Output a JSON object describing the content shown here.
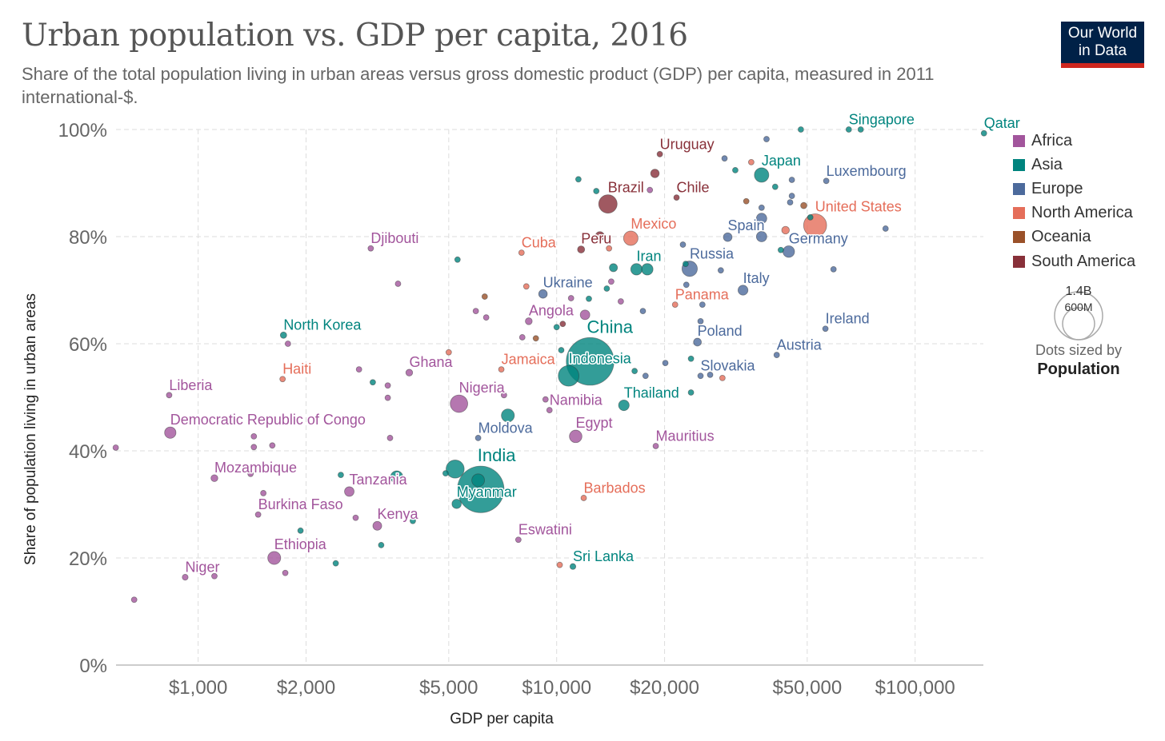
{
  "header": {
    "title": "Urban population vs. GDP per capita, 2016",
    "subtitle": "Share of the total population living in urban areas versus gross domestic product (GDP) per capita, measured in 2011 international-$.",
    "logo_line1": "Our World",
    "logo_line2": "in Data"
  },
  "size_legend": {
    "big": "1.4B",
    "small": "600M",
    "note": "Dots sized by",
    "variable": "Population",
    "big_value_m": 1400,
    "small_value_m": 600
  },
  "chart_data": {
    "type": "scatter",
    "title": "Urban population vs. GDP per capita, 2016",
    "xlabel": "GDP per capita",
    "ylabel": "Share of population living in urban areas",
    "x_scale": "log",
    "xlim": [
      590,
      155000
    ],
    "ylim": [
      0,
      100
    ],
    "x_ticks": [
      {
        "v": 1000,
        "label": "$1,000"
      },
      {
        "v": 2000,
        "label": "$2,000"
      },
      {
        "v": 5000,
        "label": "$5,000"
      },
      {
        "v": 10000,
        "label": "$10,000"
      },
      {
        "v": 20000,
        "label": "$20,000"
      },
      {
        "v": 50000,
        "label": "$50,000"
      },
      {
        "v": 100000,
        "label": "$100,000"
      }
    ],
    "y_ticks": [
      {
        "v": 0,
        "label": "0%"
      },
      {
        "v": 20,
        "label": "20%"
      },
      {
        "v": 40,
        "label": "40%"
      },
      {
        "v": 60,
        "label": "60%"
      },
      {
        "v": 80,
        "label": "80%"
      },
      {
        "v": 100,
        "label": "100%"
      }
    ],
    "grid": true,
    "legend_placement": "right",
    "regions": [
      {
        "name": "Africa",
        "color": "#a2559c"
      },
      {
        "name": "Asia",
        "color": "#00847e"
      },
      {
        "name": "Europe",
        "color": "#4c6a9c"
      },
      {
        "name": "North America",
        "color": "#e56e5a"
      },
      {
        "name": "Oceania",
        "color": "#9a5129"
      },
      {
        "name": "South America",
        "color": "#883039"
      }
    ],
    "points": [
      {
        "country": "Qatar",
        "region": "Asia",
        "gdp": 155600,
        "urban": 99.3,
        "pop_m": 2.6
      },
      {
        "country": "Singapore",
        "region": "Asia",
        "gdp": 65300,
        "urban": 100,
        "pop_m": 5.6
      },
      {
        "country": "Luxembourg",
        "region": "Europe",
        "gdp": 56500,
        "urban": 90.4,
        "pop_m": 0.6
      },
      {
        "country": "United States",
        "region": "North America",
        "gdp": 52600,
        "urban": 82.1,
        "pop_m": 323
      },
      {
        "country": "Germany",
        "region": "Europe",
        "gdp": 44400,
        "urban": 77.2,
        "pop_m": 82
      },
      {
        "country": "Japan",
        "region": "Asia",
        "gdp": 37300,
        "urban": 91.5,
        "pop_m": 127
      },
      {
        "country": "Spain",
        "region": "Europe",
        "gdp": 30000,
        "urban": 79.9,
        "pop_m": 46
      },
      {
        "country": "Italy",
        "region": "Europe",
        "gdp": 33100,
        "urban": 70.0,
        "pop_m": 60
      },
      {
        "country": "Ireland",
        "region": "Europe",
        "gdp": 56200,
        "urban": 62.8,
        "pop_m": 4.7
      },
      {
        "country": "Austria",
        "region": "Europe",
        "gdp": 41100,
        "urban": 57.9,
        "pop_m": 8.7
      },
      {
        "country": "Russia",
        "region": "Europe",
        "gdp": 23500,
        "urban": 74.0,
        "pop_m": 144
      },
      {
        "country": "Poland",
        "region": "Europe",
        "gdp": 24700,
        "urban": 60.3,
        "pop_m": 38
      },
      {
        "country": "Slovakia",
        "region": "Europe",
        "gdp": 25200,
        "urban": 54.0,
        "pop_m": 5.4
      },
      {
        "country": "Chile",
        "region": "South America",
        "gdp": 21600,
        "urban": 87.3,
        "pop_m": 18
      },
      {
        "country": "Uruguay",
        "region": "South America",
        "gdp": 19400,
        "urban": 95.4,
        "pop_m": 3.4
      },
      {
        "country": "Brazil",
        "region": "South America",
        "gdp": 13900,
        "urban": 86.1,
        "pop_m": 207
      },
      {
        "country": "Mexico",
        "region": "North America",
        "gdp": 16100,
        "urban": 79.7,
        "pop_m": 127
      },
      {
        "country": "Peru",
        "region": "South America",
        "gdp": 11700,
        "urban": 77.6,
        "pop_m": 31
      },
      {
        "country": "Cuba",
        "region": "North America",
        "gdp": 7980,
        "urban": 77.0,
        "pop_m": 11
      },
      {
        "country": "Iran",
        "region": "Asia",
        "gdp": 16700,
        "urban": 73.9,
        "pop_m": 80
      },
      {
        "country": "Panama",
        "region": "North America",
        "gdp": 21400,
        "urban": 67.3,
        "pop_m": 4
      },
      {
        "country": "Ukraine",
        "region": "Europe",
        "gdp": 9160,
        "urban": 69.3,
        "pop_m": 45
      },
      {
        "country": "Angola",
        "region": "Africa",
        "gdp": 8360,
        "urban": 64.2,
        "pop_m": 29
      },
      {
        "country": "China",
        "region": "Asia",
        "gdp": 12400,
        "urban": 56.7,
        "pop_m": 1380
      },
      {
        "country": "Indonesia",
        "region": "Asia",
        "gdp": 10800,
        "urban": 54.0,
        "pop_m": 260
      },
      {
        "country": "Thailand",
        "region": "Asia",
        "gdp": 15400,
        "urban": 48.5,
        "pop_m": 69
      },
      {
        "country": "Namibia",
        "region": "Africa",
        "gdp": 9550,
        "urban": 47.6,
        "pop_m": 2.5
      },
      {
        "country": "Egypt",
        "region": "Africa",
        "gdp": 11300,
        "urban": 42.7,
        "pop_m": 96
      },
      {
        "country": "Mauritius",
        "region": "Africa",
        "gdp": 18900,
        "urban": 40.9,
        "pop_m": 1.3
      },
      {
        "country": "Jamaica",
        "region": "North America",
        "gdp": 7010,
        "urban": 55.2,
        "pop_m": 2.9
      },
      {
        "country": "Nigeria",
        "region": "Africa",
        "gdp": 5340,
        "urban": 48.8,
        "pop_m": 186
      },
      {
        "country": "Moldova",
        "region": "Europe",
        "gdp": 6040,
        "urban": 42.4,
        "pop_m": 3.5
      },
      {
        "country": "India",
        "region": "Asia",
        "gdp": 6140,
        "urban": 32.8,
        "pop_m": 1320
      },
      {
        "country": "Myanmar",
        "region": "Asia",
        "gdp": 5260,
        "urban": 30.1,
        "pop_m": 53
      },
      {
        "country": "Barbados",
        "region": "North America",
        "gdp": 11900,
        "urban": 31.2,
        "pop_m": 0.3
      },
      {
        "country": "Eswatini",
        "region": "Africa",
        "gdp": 7820,
        "urban": 23.4,
        "pop_m": 1.3
      },
      {
        "country": "Sri Lanka",
        "region": "Asia",
        "gdp": 11100,
        "urban": 18.4,
        "pop_m": 21
      },
      {
        "country": "Kenya",
        "region": "Africa",
        "gdp": 3160,
        "urban": 26.0,
        "pop_m": 48
      },
      {
        "country": "Tanzania",
        "region": "Africa",
        "gdp": 2640,
        "urban": 32.4,
        "pop_m": 56
      },
      {
        "country": "Burkina Faso",
        "region": "Africa",
        "gdp": 1470,
        "urban": 28.1,
        "pop_m": 19
      },
      {
        "country": "Mozambique",
        "region": "Africa",
        "gdp": 1110,
        "urban": 34.9,
        "pop_m": 29
      },
      {
        "country": "Ethiopia",
        "region": "Africa",
        "gdp": 1630,
        "urban": 20.0,
        "pop_m": 102
      },
      {
        "country": "Niger",
        "region": "Africa",
        "gdp": 920,
        "urban": 16.4,
        "pop_m": 21
      },
      {
        "country": "Liberia",
        "region": "Africa",
        "gdp": 830,
        "urban": 50.4,
        "pop_m": 4.6
      },
      {
        "country": "Democratic Republic of Congo",
        "region": "Africa",
        "gdp": 836,
        "urban": 43.4,
        "pop_m": 79
      },
      {
        "country": "Haiti",
        "region": "North America",
        "gdp": 1720,
        "urban": 53.4,
        "pop_m": 11
      },
      {
        "country": "North Korea",
        "region": "Asia",
        "gdp": 1730,
        "urban": 61.6,
        "pop_m": 25
      },
      {
        "country": "Ghana",
        "region": "Africa",
        "gdp": 3880,
        "urban": 54.6,
        "pop_m": 28
      },
      {
        "country": "Djibouti",
        "region": "Africa",
        "gdp": 3030,
        "urban": 77.8,
        "pop_m": 0.9
      },
      {
        "region": "Africa",
        "gdp": 589,
        "urban": 40.6,
        "pop_m": 5
      },
      {
        "region": "Africa",
        "gdp": 663,
        "urban": 12.2,
        "pop_m": 5
      },
      {
        "region": "Africa",
        "gdp": 1110,
        "urban": 16.6,
        "pop_m": 5
      },
      {
        "region": "Africa",
        "gdp": 1750,
        "urban": 17.2,
        "pop_m": 5
      },
      {
        "region": "Africa",
        "gdp": 1400,
        "urban": 35.7,
        "pop_m": 5
      },
      {
        "region": "Africa",
        "gdp": 1520,
        "urban": 32.1,
        "pop_m": 5
      },
      {
        "region": "Africa",
        "gdp": 1430,
        "urban": 40.7,
        "pop_m": 5
      },
      {
        "region": "Africa",
        "gdp": 1610,
        "urban": 41.0,
        "pop_m": 5
      },
      {
        "region": "Africa",
        "gdp": 1430,
        "urban": 42.7,
        "pop_m": 5
      },
      {
        "region": "Africa",
        "gdp": 1780,
        "urban": 60.0,
        "pop_m": 5
      },
      {
        "region": "Africa",
        "gdp": 2810,
        "urban": 55.2,
        "pop_m": 12
      },
      {
        "region": "Africa",
        "gdp": 3380,
        "urban": 52.2,
        "pop_m": 5
      },
      {
        "region": "Africa",
        "gdp": 3380,
        "urban": 49.9,
        "pop_m": 10
      },
      {
        "region": "Africa",
        "gdp": 3430,
        "urban": 42.4,
        "pop_m": 5
      },
      {
        "region": "Africa",
        "gdp": 2750,
        "urban": 27.5,
        "pop_m": 5
      },
      {
        "region": "Africa",
        "gdp": 3610,
        "urban": 71.2,
        "pop_m": 5
      },
      {
        "region": "Africa",
        "gdp": 5950,
        "urban": 66.1,
        "pop_m": 5
      },
      {
        "region": "Africa",
        "gdp": 6360,
        "urban": 64.9,
        "pop_m": 5
      },
      {
        "region": "Africa",
        "gdp": 8020,
        "urban": 61.2,
        "pop_m": 12
      },
      {
        "region": "Africa",
        "gdp": 9310,
        "urban": 49.6,
        "pop_m": 5
      },
      {
        "region": "Africa",
        "gdp": 10970,
        "urban": 68.5,
        "pop_m": 5
      },
      {
        "region": "Africa",
        "gdp": 12000,
        "urban": 65.4,
        "pop_m": 56
      },
      {
        "region": "Africa",
        "gdp": 14200,
        "urban": 71.6,
        "pop_m": 12
      },
      {
        "region": "Africa",
        "gdp": 15100,
        "urban": 67.9,
        "pop_m": 5
      },
      {
        "region": "Africa",
        "gdp": 18200,
        "urban": 88.7,
        "pop_m": 5
      },
      {
        "region": "Africa",
        "gdp": 7130,
        "urban": 50.4,
        "pop_m": 5
      },
      {
        "region": "Asia",
        "gdp": 1930,
        "urban": 25.1,
        "pop_m": 15
      },
      {
        "region": "Asia",
        "gdp": 2420,
        "urban": 19.0,
        "pop_m": 15
      },
      {
        "region": "Asia",
        "gdp": 2500,
        "urban": 35.5,
        "pop_m": 12
      },
      {
        "region": "Asia",
        "gdp": 3240,
        "urban": 22.4,
        "pop_m": 7
      },
      {
        "region": "Asia",
        "gdp": 3070,
        "urban": 52.8,
        "pop_m": 6
      },
      {
        "region": "Asia",
        "gdp": 3580,
        "urban": 35.1,
        "pop_m": 94
      },
      {
        "region": "Asia",
        "gdp": 3970,
        "urban": 26.9,
        "pop_m": 5
      },
      {
        "region": "Asia",
        "gdp": 4900,
        "urban": 35.8,
        "pop_m": 8
      },
      {
        "region": "Asia",
        "gdp": 5290,
        "urban": 75.7,
        "pop_m": 6
      },
      {
        "region": "Asia",
        "gdp": 5210,
        "urban": 36.6,
        "pop_m": 200
      },
      {
        "region": "Asia",
        "gdp": 6040,
        "urban": 34.5,
        "pop_m": 100
      },
      {
        "region": "Asia",
        "gdp": 7310,
        "urban": 46.6,
        "pop_m": 103
      },
      {
        "region": "Asia",
        "gdp": 10000,
        "urban": 63.1,
        "pop_m": 6
      },
      {
        "region": "Asia",
        "gdp": 10300,
        "urban": 58.8,
        "pop_m": 6
      },
      {
        "region": "Asia",
        "gdp": 11500,
        "urban": 90.7,
        "pop_m": 6
      },
      {
        "region": "Asia",
        "gdp": 12300,
        "urban": 68.4,
        "pop_m": 5
      },
      {
        "region": "Asia",
        "gdp": 12900,
        "urban": 88.5,
        "pop_m": 6
      },
      {
        "region": "Asia",
        "gdp": 13800,
        "urban": 70.3,
        "pop_m": 18
      },
      {
        "region": "Asia",
        "gdp": 14400,
        "urban": 74.2,
        "pop_m": 40
      },
      {
        "region": "Asia",
        "gdp": 16500,
        "urban": 54.9,
        "pop_m": 5
      },
      {
        "region": "Asia",
        "gdp": 17900,
        "urban": 73.9,
        "pop_m": 80
      },
      {
        "region": "Asia",
        "gdp": 22900,
        "urban": 74.9,
        "pop_m": 18
      },
      {
        "region": "Asia",
        "gdp": 23700,
        "urban": 57.2,
        "pop_m": 6
      },
      {
        "region": "Asia",
        "gdp": 23700,
        "urban": 50.9,
        "pop_m": 6
      },
      {
        "region": "Asia",
        "gdp": 31500,
        "urban": 92.4,
        "pop_m": 6
      },
      {
        "region": "Asia",
        "gdp": 40700,
        "urban": 89.3,
        "pop_m": 5
      },
      {
        "region": "Asia",
        "gdp": 42200,
        "urban": 77.5,
        "pop_m": 8
      },
      {
        "region": "Asia",
        "gdp": 48000,
        "urban": 100,
        "pop_m": 5
      },
      {
        "region": "Asia",
        "gdp": 51000,
        "urban": 83.6,
        "pop_m": 9
      },
      {
        "region": "Asia",
        "gdp": 70500,
        "urban": 100,
        "pop_m": 5
      },
      {
        "region": "Europe",
        "gdp": 17400,
        "urban": 66.1,
        "pop_m": 5
      },
      {
        "region": "Europe",
        "gdp": 17700,
        "urban": 54.0,
        "pop_m": 5
      },
      {
        "region": "Europe",
        "gdp": 20100,
        "urban": 56.4,
        "pop_m": 5
      },
      {
        "region": "Europe",
        "gdp": 22500,
        "urban": 78.5,
        "pop_m": 5
      },
      {
        "region": "Europe",
        "gdp": 23000,
        "urban": 71.0,
        "pop_m": 5
      },
      {
        "region": "Europe",
        "gdp": 25200,
        "urban": 64.2,
        "pop_m": 5
      },
      {
        "region": "Europe",
        "gdp": 25500,
        "urban": 67.3,
        "pop_m": 10
      },
      {
        "region": "Europe",
        "gdp": 26800,
        "urban": 54.2,
        "pop_m": 5
      },
      {
        "region": "Europe",
        "gdp": 28700,
        "urban": 73.7,
        "pop_m": 5
      },
      {
        "region": "Europe",
        "gdp": 29400,
        "urban": 94.6,
        "pop_m": 5
      },
      {
        "region": "Europe",
        "gdp": 37300,
        "urban": 85.4,
        "pop_m": 5
      },
      {
        "region": "Europe",
        "gdp": 37300,
        "urban": 80.0,
        "pop_m": 66
      },
      {
        "region": "Europe",
        "gdp": 38500,
        "urban": 98.2,
        "pop_m": 5
      },
      {
        "region": "Europe",
        "gdp": 37300,
        "urban": 83.4,
        "pop_m": 66
      },
      {
        "region": "Europe",
        "gdp": 45300,
        "urban": 90.6,
        "pop_m": 5
      },
      {
        "region": "Europe",
        "gdp": 45300,
        "urban": 87.6,
        "pop_m": 8
      },
      {
        "region": "Europe",
        "gdp": 44800,
        "urban": 86.4,
        "pop_m": 5
      },
      {
        "region": "Europe",
        "gdp": 59200,
        "urban": 73.9,
        "pop_m": 5
      },
      {
        "region": "Europe",
        "gdp": 82700,
        "urban": 81.5,
        "pop_m": 5
      },
      {
        "region": "North America",
        "gdp": 5000,
        "urban": 58.4,
        "pop_m": 5
      },
      {
        "region": "North America",
        "gdp": 8230,
        "urban": 70.7,
        "pop_m": 5
      },
      {
        "region": "North America",
        "gdp": 10200,
        "urban": 18.7,
        "pop_m": 5
      },
      {
        "region": "North America",
        "gdp": 14000,
        "urban": 77.8,
        "pop_m": 5
      },
      {
        "region": "North America",
        "gdp": 29000,
        "urban": 53.6,
        "pop_m": 5
      },
      {
        "region": "North America",
        "gdp": 34900,
        "urban": 93.9,
        "pop_m": 5
      },
      {
        "region": "North America",
        "gdp": 43500,
        "urban": 81.2,
        "pop_m": 36
      },
      {
        "region": "Oceania",
        "gdp": 48900,
        "urban": 85.8,
        "pop_m": 24
      },
      {
        "region": "Oceania",
        "gdp": 33800,
        "urban": 86.6,
        "pop_m": 5
      },
      {
        "region": "Oceania",
        "gdp": 6300,
        "urban": 68.8,
        "pop_m": 5
      },
      {
        "region": "Oceania",
        "gdp": 8750,
        "urban": 61.0,
        "pop_m": 5
      },
      {
        "region": "South America",
        "gdp": 13200,
        "urban": 80.1,
        "pop_m": 48
      },
      {
        "region": "South America",
        "gdp": 10400,
        "urban": 63.7,
        "pop_m": 10
      },
      {
        "region": "South America",
        "gdp": 18800,
        "urban": 91.8,
        "pop_m": 44
      }
    ]
  }
}
